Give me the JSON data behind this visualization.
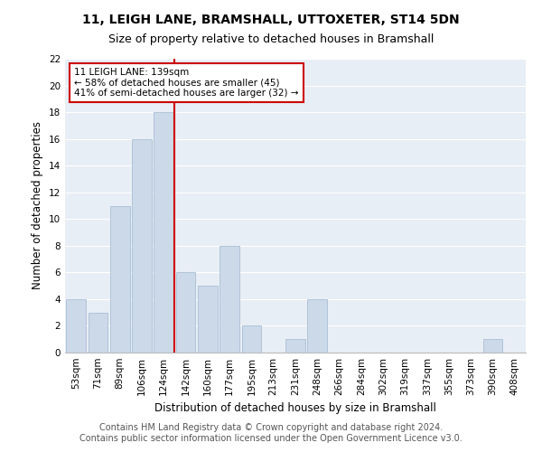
{
  "title": "11, LEIGH LANE, BRAMSHALL, UTTOXETER, ST14 5DN",
  "subtitle": "Size of property relative to detached houses in Bramshall",
  "xlabel": "Distribution of detached houses by size in Bramshall",
  "ylabel": "Number of detached properties",
  "bar_labels": [
    "53sqm",
    "71sqm",
    "89sqm",
    "106sqm",
    "124sqm",
    "142sqm",
    "160sqm",
    "177sqm",
    "195sqm",
    "213sqm",
    "231sqm",
    "248sqm",
    "266sqm",
    "284sqm",
    "302sqm",
    "319sqm",
    "337sqm",
    "355sqm",
    "373sqm",
    "390sqm",
    "408sqm"
  ],
  "bar_values": [
    4,
    3,
    11,
    16,
    18,
    6,
    5,
    8,
    2,
    0,
    1,
    4,
    0,
    0,
    0,
    0,
    0,
    0,
    0,
    1,
    0
  ],
  "bar_color": "#ccd9e8",
  "bar_edge_color": "#a8bfd4",
  "vline_color": "#cc0000",
  "annotation_text": "11 LEIGH LANE: 139sqm\n← 58% of detached houses are smaller (45)\n41% of semi-detached houses are larger (32) →",
  "annotation_box_color": "#ffffff",
  "annotation_box_edge_color": "#cc0000",
  "ylim": [
    0,
    22
  ],
  "yticks": [
    0,
    2,
    4,
    6,
    8,
    10,
    12,
    14,
    16,
    18,
    20,
    22
  ],
  "bg_color": "#e8eef5",
  "footer_text": "Contains HM Land Registry data © Crown copyright and database right 2024.\nContains public sector information licensed under the Open Government Licence v3.0.",
  "title_fontsize": 10,
  "subtitle_fontsize": 9,
  "xlabel_fontsize": 8.5,
  "ylabel_fontsize": 8.5,
  "footer_fontsize": 7,
  "tick_fontsize": 7.5
}
